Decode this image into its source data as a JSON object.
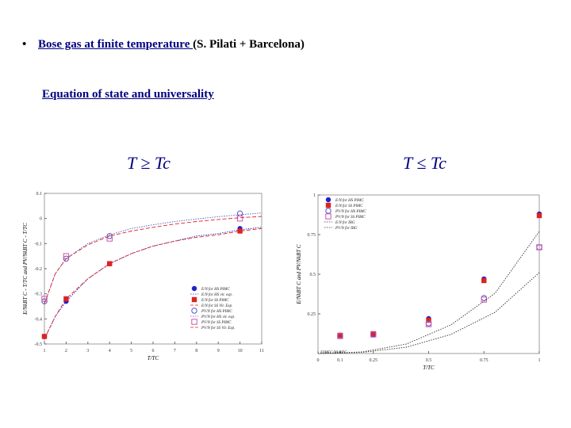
{
  "header": {
    "bullet": "•",
    "title": "Bose gas at finite temperature ",
    "authors": "(S. Pilati + Barcelona)"
  },
  "subtitle": "Equation of state and universality",
  "labels": {
    "left": "T ≥ Tc",
    "right": "T ≤ Tc"
  },
  "colors": {
    "accent": "#000080",
    "hs": "#2222cc",
    "ss": "#dd2222",
    "open_hs": "#5555cc",
    "open_ss": "#cc55aa"
  },
  "chart_data": [
    {
      "type": "scatter",
      "xlabel": "T/TC",
      "ylabel": "E/NkBT C - T/TC and PV/NkBT C - T/TC",
      "xlim": [
        1,
        11
      ],
      "ylim": [
        -0.5,
        0.1
      ],
      "xticks": [
        "1",
        "2",
        "3",
        "4",
        "5",
        "6",
        "7",
        "8",
        "9",
        "10",
        "11"
      ],
      "yticks": [
        "0.1",
        "0",
        "-0.1",
        "-0.2",
        "-0.3",
        "-0.4",
        "-0.5"
      ],
      "legend_position": "bottom-right",
      "series": [
        {
          "name": "E/N for HS PIMC",
          "marker": "filled-circle",
          "color": "#2222cc",
          "x": [
            1,
            2,
            4,
            10
          ],
          "y": [
            -0.47,
            -0.33,
            -0.18,
            -0.04
          ]
        },
        {
          "name": "E/N for HS vir. exp.",
          "marker": "line-dotted",
          "color": "#2222cc",
          "x": [
            1,
            1.5,
            2,
            3,
            4,
            5,
            6,
            7,
            8,
            9,
            10,
            11
          ],
          "y": [
            -0.48,
            -0.39,
            -0.33,
            -0.24,
            -0.18,
            -0.14,
            -0.11,
            -0.09,
            -0.07,
            -0.06,
            -0.045,
            -0.035
          ]
        },
        {
          "name": "E/N for SS PIMC",
          "marker": "filled-square",
          "color": "#dd2222",
          "x": [
            1,
            2,
            4,
            10
          ],
          "y": [
            -0.47,
            -0.32,
            -0.18,
            -0.05
          ]
        },
        {
          "name": "E/N for SS Vir. Exp.",
          "marker": "line-dashed",
          "color": "#dd2222",
          "x": [
            1,
            1.5,
            2,
            3,
            4,
            5,
            6,
            7,
            8,
            9,
            10,
            11
          ],
          "y": [
            -0.48,
            -0.39,
            -0.32,
            -0.24,
            -0.18,
            -0.14,
            -0.11,
            -0.09,
            -0.075,
            -0.065,
            -0.05,
            -0.04
          ]
        },
        {
          "name": "PV/N for HS PIMC",
          "marker": "open-circle",
          "color": "#5555cc",
          "x": [
            1,
            2,
            4,
            10
          ],
          "y": [
            -0.33,
            -0.16,
            -0.07,
            0.02
          ]
        },
        {
          "name": "PV/N for HS vir. exp.",
          "marker": "line-dotted",
          "color": "#5555cc",
          "x": [
            1,
            1.5,
            2,
            3,
            4,
            5,
            6,
            7,
            8,
            9,
            10,
            11
          ],
          "y": [
            -0.34,
            -0.22,
            -0.16,
            -0.1,
            -0.065,
            -0.04,
            -0.025,
            -0.012,
            -0.002,
            0.007,
            0.015,
            0.022
          ]
        },
        {
          "name": "PV/N for SS PIMC",
          "marker": "open-square",
          "color": "#cc55aa",
          "x": [
            1,
            2,
            4,
            10
          ],
          "y": [
            -0.32,
            -0.15,
            -0.08,
            0.0
          ]
        },
        {
          "name": "PV/N for SS Vir. Exp.",
          "marker": "line-dashed",
          "color": "#dd2222",
          "x": [
            1,
            1.5,
            2,
            3,
            4,
            5,
            6,
            7,
            8,
            9,
            10,
            11
          ],
          "y": [
            -0.34,
            -0.22,
            -0.16,
            -0.105,
            -0.07,
            -0.05,
            -0.035,
            -0.022,
            -0.012,
            -0.004,
            0.003,
            0.008
          ]
        }
      ]
    },
    {
      "type": "scatter",
      "xlabel": "T/TC",
      "ylabel": "E/NkBT C and PV/NkBT C",
      "xlim": [
        0,
        1
      ],
      "ylim": [
        0,
        1
      ],
      "xticks": [
        "0",
        "0.1",
        "0.25",
        "0.5",
        "0.75",
        "1"
      ],
      "yticks": [
        "1",
        "0.75",
        "0.5",
        "0.25"
      ],
      "annotation": "EIBEC/NkBTC",
      "legend_position": "top-left",
      "series": [
        {
          "name": "E/N for HS PIMC",
          "marker": "filled-circle",
          "color": "#2222cc",
          "x": [
            0.1,
            0.25,
            0.5,
            0.75,
            1
          ],
          "y": [
            0.115,
            0.12,
            0.22,
            0.47,
            0.88
          ]
        },
        {
          "name": "E/N for SS PIMC",
          "marker": "filled-square",
          "color": "#dd2222",
          "x": [
            0.1,
            0.25,
            0.5,
            0.75,
            1
          ],
          "y": [
            0.115,
            0.125,
            0.21,
            0.46,
            0.87
          ]
        },
        {
          "name": "PV/N for HS PIMC",
          "marker": "open-circle",
          "color": "#5555cc",
          "x": [
            0.1,
            0.25,
            0.5,
            0.75,
            1
          ],
          "y": [
            0.11,
            0.12,
            0.19,
            0.35,
            0.67
          ]
        },
        {
          "name": "PV/N for SS PIMC",
          "marker": "open-square",
          "color": "#cc55aa",
          "x": [
            0.1,
            0.25,
            0.5,
            0.75,
            1
          ],
          "y": [
            0.11,
            0.12,
            0.185,
            0.34,
            0.67
          ]
        },
        {
          "name": "E/N for IBG",
          "marker": "line-dotted",
          "color": "#333333",
          "x": [
            0,
            0.2,
            0.4,
            0.6,
            0.8,
            1
          ],
          "y": [
            0,
            0.01,
            0.06,
            0.18,
            0.38,
            0.77
          ]
        },
        {
          "name": "PV/N for IBG",
          "marker": "line-dotted",
          "color": "#333333",
          "x": [
            0,
            0.2,
            0.4,
            0.6,
            0.8,
            1
          ],
          "y": [
            0,
            0.007,
            0.04,
            0.12,
            0.26,
            0.51
          ]
        }
      ]
    }
  ]
}
